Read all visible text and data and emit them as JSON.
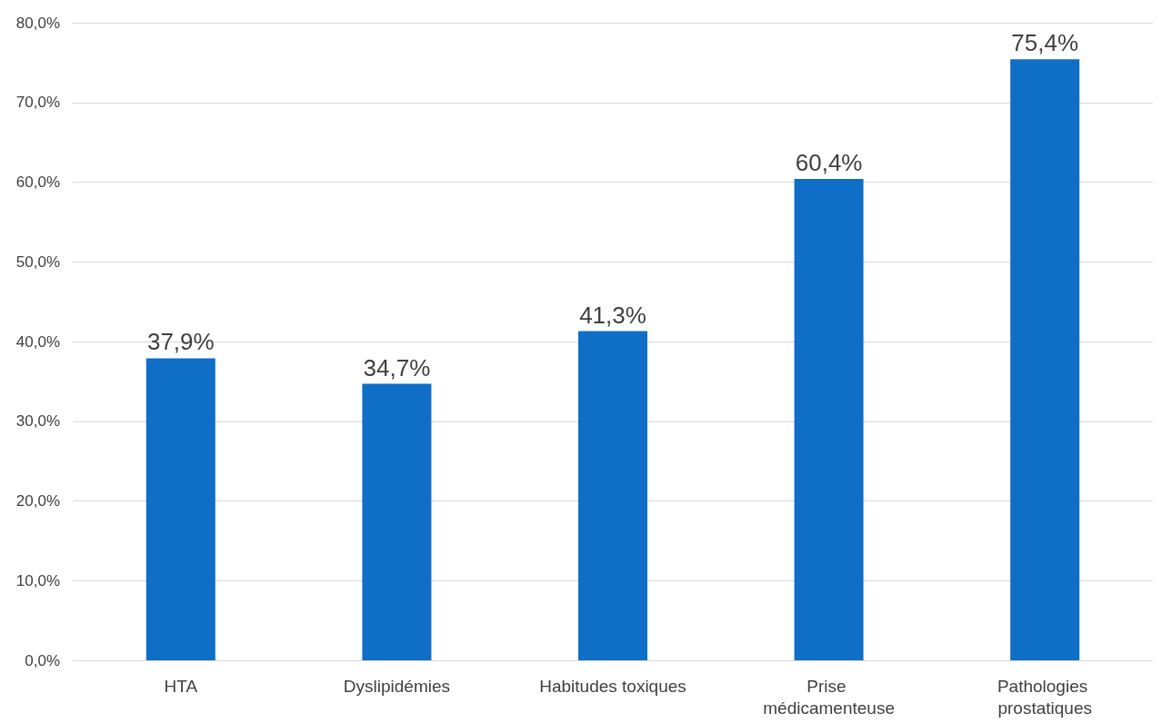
{
  "chart_data": {
    "type": "bar",
    "categories": [
      "HTA",
      "Dyslipidémies",
      "Habitudes toxiques",
      "Prise médicamenteuse",
      "Pathologies prostatiques"
    ],
    "values": [
      37.9,
      34.7,
      41.3,
      60.4,
      75.4
    ],
    "value_labels": [
      "37,9%",
      "34,7%",
      "41,3%",
      "60,4%",
      "75,4%"
    ],
    "color": "#0f6fc6",
    "ylim": [
      0,
      80
    ],
    "yticks": [
      {
        "value": 0,
        "label": "0,0%"
      },
      {
        "value": 10,
        "label": "10,0%"
      },
      {
        "value": 20,
        "label": "20,0%"
      },
      {
        "value": 30,
        "label": "30,0%"
      },
      {
        "value": 40,
        "label": "40,0%"
      },
      {
        "value": 50,
        "label": "50,0%"
      },
      {
        "value": 60,
        "label": "60,0%"
      },
      {
        "value": 70,
        "label": "70,0%"
      },
      {
        "value": 80,
        "label": "80,0%"
      }
    ],
    "grid": "y"
  }
}
